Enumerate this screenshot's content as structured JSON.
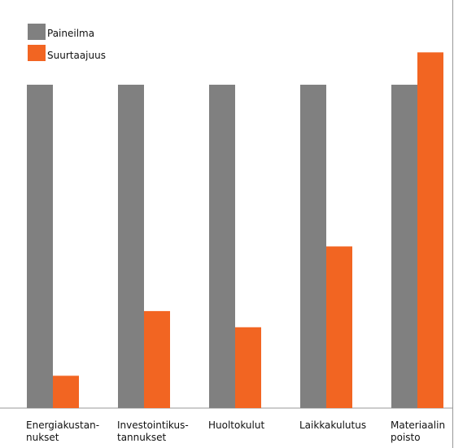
{
  "chart_data": {
    "type": "bar",
    "categories": [
      [
        "Energiakustan-",
        "nukset"
      ],
      [
        "Investointikus-",
        "tannukset"
      ],
      [
        "Huoltokulut",
        ""
      ],
      [
        "Laikkakulutus",
        ""
      ],
      [
        "Materiaalin",
        "poisto"
      ]
    ],
    "series": [
      {
        "name": "Paineilma",
        "color": "#808080",
        "values": [
          100,
          100,
          100,
          100,
          100
        ]
      },
      {
        "name": "Suurtaajuus",
        "color": "#f26522",
        "values": [
          10,
          30,
          25,
          50,
          110
        ]
      }
    ],
    "ylim": [
      0,
      110
    ],
    "grid": false,
    "legend": "top-left",
    "title": "",
    "xlabel": "",
    "ylabel": ""
  }
}
